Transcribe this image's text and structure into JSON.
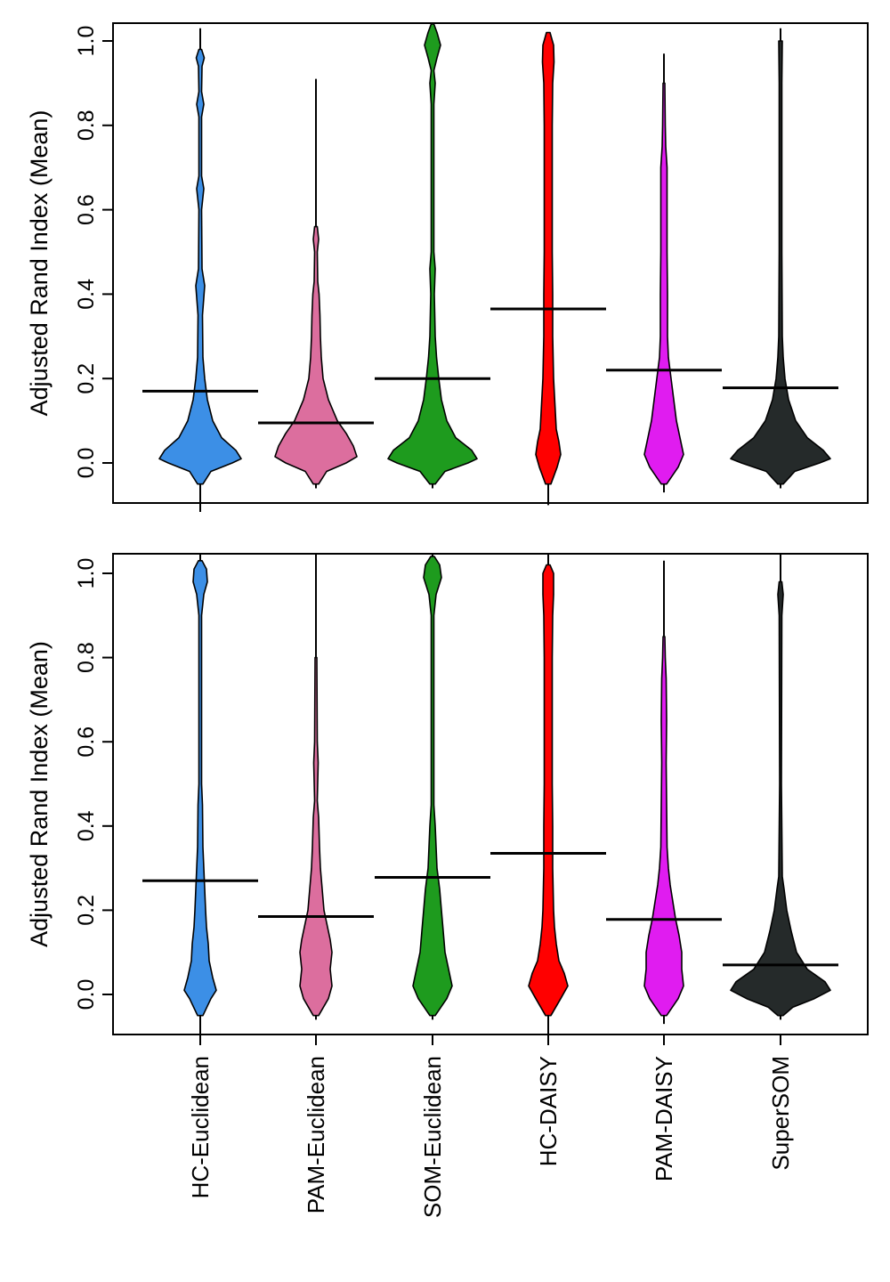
{
  "chart_data": [
    {
      "type": "violin",
      "panel": "top",
      "ylabel": "Adjusted Rand Index (Mean)",
      "ylim": [
        -0.1,
        1.05
      ],
      "yticks": [
        "0.0",
        "0.2",
        "0.4",
        "0.6",
        "0.8",
        "1.0"
      ],
      "series": [
        {
          "name": "HC-Euclidean",
          "color": "#3c8fe6",
          "mean": 0.17,
          "min": -0.11,
          "max": 1.03
        },
        {
          "name": "PAM-Euclidean",
          "color": "#dc6e9e",
          "mean": 0.095,
          "min": -0.06,
          "max": 0.91
        },
        {
          "name": "SOM-Euclidean",
          "color": "#1e9b1e",
          "mean": 0.2,
          "min": -0.06,
          "max": 1.04
        },
        {
          "name": "HC-DAISY",
          "color": "#ff0000",
          "mean": 0.365,
          "min": -0.1,
          "max": 1.02
        },
        {
          "name": "PAM-DAISY",
          "color": "#e01cf0",
          "mean": 0.22,
          "min": -0.07,
          "max": 0.97
        },
        {
          "name": "SuperSOM",
          "color": "#252a2a",
          "mean": 0.178,
          "min": -0.06,
          "max": 1.03
        }
      ]
    },
    {
      "type": "violin",
      "panel": "bottom",
      "ylabel": "Adjusted Rand Index (Mean)",
      "ylim": [
        -0.1,
        1.05
      ],
      "yticks": [
        "0.0",
        "0.2",
        "0.4",
        "0.6",
        "0.8",
        "1.0"
      ],
      "series": [
        {
          "name": "HC-Euclidean",
          "color": "#3c8fe6",
          "mean": 0.27,
          "min": -0.1,
          "max": 1.06
        },
        {
          "name": "PAM-Euclidean",
          "color": "#dc6e9e",
          "mean": 0.185,
          "min": -0.06,
          "max": 1.06
        },
        {
          "name": "SOM-Euclidean",
          "color": "#1e9b1e",
          "mean": 0.278,
          "min": -0.06,
          "max": 1.06
        },
        {
          "name": "HC-DAISY",
          "color": "#ff0000",
          "mean": 0.335,
          "min": -0.1,
          "max": 1.05
        },
        {
          "name": "PAM-DAISY",
          "color": "#e01cf0",
          "mean": 0.178,
          "min": -0.07,
          "max": 1.03
        },
        {
          "name": "SuperSOM",
          "color": "#252a2a",
          "mean": 0.07,
          "min": -0.06,
          "max": 1.06
        }
      ]
    }
  ],
  "x_labels": [
    "HC-Euclidean",
    "PAM-Euclidean",
    "SOM-Euclidean",
    "HC-DAISY",
    "PAM-DAISY",
    "SuperSOM"
  ]
}
